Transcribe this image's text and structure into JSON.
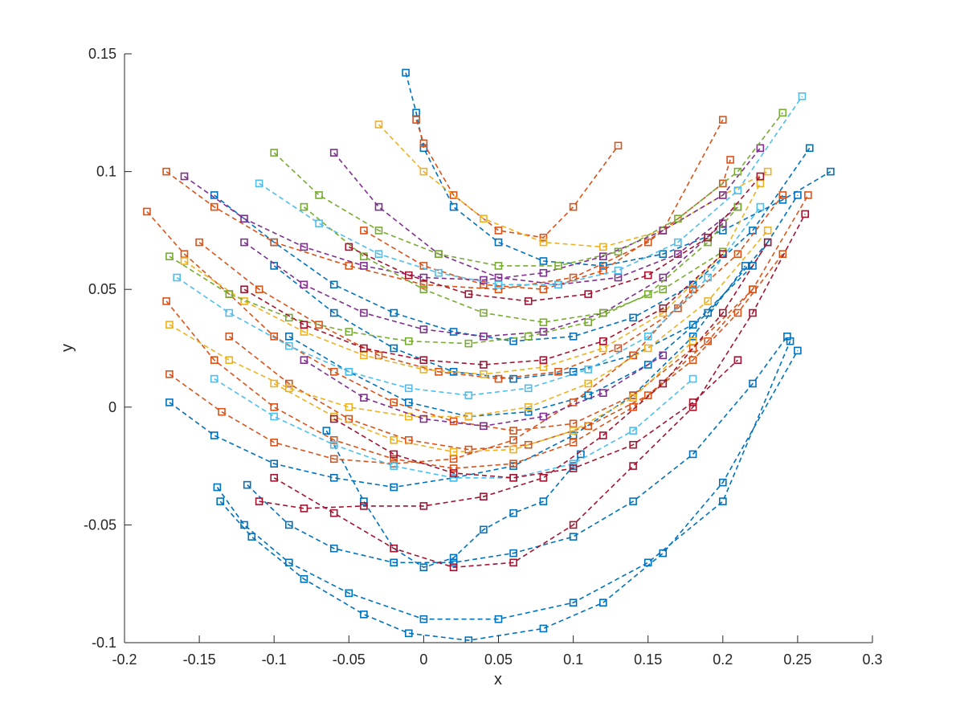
{
  "chart_data": {
    "type": "line",
    "title": "",
    "xlabel": "x",
    "ylabel": "y",
    "xlim": [
      -0.2,
      0.3
    ],
    "ylim": [
      -0.1,
      0.15
    ],
    "xticks": [
      -0.2,
      -0.15,
      -0.1,
      -0.05,
      0,
      0.05,
      0.1,
      0.15,
      0.2,
      0.25,
      0.3
    ],
    "xtick_labels": [
      "-0.2",
      "-0.15",
      "-0.1",
      "-0.05",
      "0",
      "0.05",
      "0.1",
      "0.15",
      "0.2",
      "0.25",
      "0.3"
    ],
    "yticks": [
      -0.1,
      -0.05,
      0,
      0.05,
      0.1,
      0.15
    ],
    "ytick_labels": [
      "-0.1",
      "-0.05",
      "0",
      "0.05",
      "0.1",
      "0.15"
    ],
    "grid": false,
    "legend": "none",
    "line_style": "dashed",
    "marker": "square",
    "colors": [
      "#0072BD",
      "#D95319",
      "#EDB120",
      "#7E2F8E",
      "#77AC30",
      "#4DBEEE",
      "#A2142F"
    ],
    "series": [
      {
        "color": "#0072BD",
        "x": [
          -0.138,
          -0.12,
          -0.09,
          -0.05,
          0.0,
          0.05,
          0.1,
          0.15,
          0.2,
          0.245
        ],
        "y": [
          -0.034,
          -0.05,
          -0.066,
          -0.079,
          -0.09,
          -0.09,
          -0.083,
          -0.066,
          -0.04,
          0.028
        ]
      },
      {
        "color": "#0072BD",
        "x": [
          -0.136,
          -0.115,
          -0.08,
          -0.04,
          -0.01,
          0.03,
          0.08,
          0.12,
          0.16,
          0.2,
          0.25
        ],
        "y": [
          -0.04,
          -0.055,
          -0.073,
          -0.088,
          -0.096,
          -0.099,
          -0.094,
          -0.083,
          -0.062,
          -0.032,
          0.024
        ]
      },
      {
        "color": "#0072BD",
        "x": [
          -0.118,
          -0.09,
          -0.06,
          -0.02,
          0.02,
          0.06,
          0.1,
          0.14,
          0.18,
          0.22,
          0.243
        ],
        "y": [
          -0.033,
          -0.05,
          -0.06,
          -0.066,
          -0.066,
          -0.062,
          -0.055,
          -0.04,
          -0.02,
          0.01,
          0.03
        ]
      },
      {
        "color": "#0072BD",
        "x": [
          -0.17,
          -0.14,
          -0.1,
          -0.06,
          -0.02,
          0.02,
          0.06,
          0.1,
          0.14,
          0.18,
          0.215
        ],
        "y": [
          0.002,
          -0.012,
          -0.024,
          -0.03,
          -0.034,
          -0.03,
          -0.025,
          -0.012,
          0.005,
          0.03,
          0.06
        ]
      },
      {
        "color": "#0072BD",
        "x": [
          -0.065,
          -0.04,
          -0.02,
          0.0,
          0.02,
          0.04,
          0.06,
          0.08,
          0.1,
          0.105
        ],
        "y": [
          -0.01,
          -0.04,
          -0.06,
          -0.068,
          -0.064,
          -0.052,
          -0.045,
          -0.04,
          -0.025,
          -0.02
        ]
      },
      {
        "color": "#0072BD",
        "x": [
          -0.012,
          -0.005,
          0.0,
          0.02,
          0.05,
          0.08,
          0.12,
          0.16,
          0.2,
          0.24,
          0.272
        ],
        "y": [
          0.142,
          0.125,
          0.11,
          0.085,
          0.07,
          0.062,
          0.06,
          0.065,
          0.075,
          0.088,
          0.1
        ]
      },
      {
        "color": "#0072BD",
        "x": [
          -0.14,
          -0.1,
          -0.06,
          -0.02,
          0.02,
          0.06,
          0.1,
          0.14,
          0.18,
          0.22,
          0.258
        ],
        "y": [
          0.09,
          0.07,
          0.052,
          0.04,
          0.032,
          0.028,
          0.03,
          0.038,
          0.052,
          0.075,
          0.11
        ]
      },
      {
        "color": "#0072BD",
        "x": [
          -0.1,
          -0.06,
          -0.02,
          0.02,
          0.06,
          0.1,
          0.14,
          0.18,
          0.22,
          0.25
        ],
        "y": [
          0.06,
          0.04,
          0.025,
          0.015,
          0.012,
          0.015,
          0.022,
          0.035,
          0.06,
          0.09
        ]
      },
      {
        "color": "#0072BD",
        "x": [
          -0.09,
          -0.05,
          -0.01,
          0.03,
          0.07,
          0.11,
          0.15,
          0.19,
          0.23
        ],
        "y": [
          0.03,
          0.015,
          0.002,
          -0.004,
          -0.002,
          0.005,
          0.018,
          0.04,
          0.07
        ]
      },
      {
        "color": "#D95319",
        "x": [
          -0.185,
          -0.16,
          -0.13,
          -0.1,
          -0.06,
          -0.02,
          0.02,
          0.06,
          0.1,
          0.14,
          0.18,
          0.22,
          0.257
        ],
        "y": [
          0.083,
          0.065,
          0.048,
          0.03,
          0.015,
          0.002,
          -0.006,
          -0.01,
          -0.007,
          0.005,
          0.025,
          0.05,
          0.09
        ]
      },
      {
        "color": "#D95319",
        "x": [
          -0.172,
          -0.14,
          -0.1,
          -0.06,
          -0.02,
          0.02,
          0.06,
          0.1,
          0.14,
          0.18,
          0.21,
          0.24
        ],
        "y": [
          0.045,
          0.02,
          0.0,
          -0.014,
          -0.022,
          -0.026,
          -0.024,
          -0.015,
          0.0,
          0.02,
          0.04,
          0.065
        ]
      },
      {
        "color": "#D95319",
        "x": [
          -0.17,
          -0.135,
          -0.1,
          -0.06,
          -0.02,
          0.02,
          0.06,
          0.1,
          0.14,
          0.18
        ],
        "y": [
          0.014,
          -0.002,
          -0.015,
          -0.022,
          -0.024,
          -0.022,
          -0.014,
          0.002,
          0.022,
          0.05
        ]
      },
      {
        "color": "#D95319",
        "x": [
          -0.172,
          -0.14,
          -0.1,
          -0.05,
          0.0,
          0.05,
          0.1,
          0.15,
          0.2,
          0.205
        ],
        "y": [
          0.1,
          0.085,
          0.07,
          0.06,
          0.052,
          0.05,
          0.055,
          0.07,
          0.095,
          0.105
        ]
      },
      {
        "color": "#D95319",
        "x": [
          -0.005,
          0.0,
          0.02,
          0.05,
          0.08,
          0.1,
          0.13
        ],
        "y": [
          0.122,
          0.112,
          0.09,
          0.075,
          0.072,
          0.085,
          0.111
        ]
      },
      {
        "color": "#D95319",
        "x": [
          -0.15,
          -0.11,
          -0.07,
          -0.03,
          0.01,
          0.05,
          0.09,
          0.13,
          0.17,
          0.21,
          0.24
        ],
        "y": [
          0.07,
          0.05,
          0.035,
          0.022,
          0.015,
          0.012,
          0.015,
          0.025,
          0.042,
          0.065,
          0.09
        ]
      },
      {
        "color": "#D95319",
        "x": [
          -0.13,
          -0.09,
          -0.05,
          -0.01,
          0.03,
          0.07,
          0.11,
          0.15,
          0.19,
          0.22
        ],
        "y": [
          0.03,
          0.01,
          -0.005,
          -0.014,
          -0.018,
          -0.016,
          -0.008,
          0.005,
          0.028,
          0.05
        ]
      },
      {
        "color": "#D95319",
        "x": [
          -0.04,
          0.0,
          0.04,
          0.08,
          0.12,
          0.16,
          0.2
        ],
        "y": [
          0.075,
          0.06,
          0.052,
          0.05,
          0.058,
          0.075,
          0.122
        ]
      },
      {
        "color": "#EDB120",
        "x": [
          -0.17,
          -0.13,
          -0.09,
          -0.05,
          -0.01,
          0.03,
          0.07,
          0.11,
          0.15,
          0.19,
          0.23
        ],
        "y": [
          0.035,
          0.02,
          0.008,
          0.0,
          -0.004,
          -0.004,
          0.0,
          0.01,
          0.025,
          0.045,
          0.075
        ]
      },
      {
        "color": "#EDB120",
        "x": [
          -0.03,
          0.0,
          0.04,
          0.08,
          0.12,
          0.16,
          0.2,
          0.23
        ],
        "y": [
          0.12,
          0.1,
          0.08,
          0.07,
          0.068,
          0.075,
          0.09,
          0.1
        ]
      },
      {
        "color": "#EDB120",
        "x": [
          -0.16,
          -0.12,
          -0.08,
          -0.04,
          0.0,
          0.04,
          0.08,
          0.12,
          0.16,
          0.2,
          0.225
        ],
        "y": [
          0.062,
          0.045,
          0.032,
          0.022,
          0.016,
          0.014,
          0.017,
          0.025,
          0.04,
          0.065,
          0.095
        ]
      },
      {
        "color": "#EDB120",
        "x": [
          -0.1,
          -0.06,
          -0.02,
          0.02,
          0.06,
          0.1,
          0.14,
          0.18
        ],
        "y": [
          0.01,
          -0.004,
          -0.014,
          -0.019,
          -0.018,
          -0.01,
          0.004,
          0.028
        ]
      },
      {
        "color": "#7E2F8E",
        "x": [
          -0.16,
          -0.12,
          -0.08,
          -0.04,
          0.0,
          0.04,
          0.08,
          0.12,
          0.16,
          0.2,
          0.225
        ],
        "y": [
          0.098,
          0.08,
          0.068,
          0.06,
          0.055,
          0.054,
          0.057,
          0.064,
          0.075,
          0.09,
          0.11
        ]
      },
      {
        "color": "#7E2F8E",
        "x": [
          -0.06,
          -0.03,
          0.01,
          0.05,
          0.09,
          0.13,
          0.17,
          0.21
        ],
        "y": [
          0.108,
          0.085,
          0.065,
          0.055,
          0.052,
          0.055,
          0.065,
          0.085
        ]
      },
      {
        "color": "#7E2F8E",
        "x": [
          -0.12,
          -0.08,
          -0.04,
          0.0,
          0.04,
          0.08,
          0.12,
          0.16,
          0.2
        ],
        "y": [
          0.07,
          0.052,
          0.04,
          0.033,
          0.03,
          0.032,
          0.04,
          0.055,
          0.078
        ]
      },
      {
        "color": "#7E2F8E",
        "x": [
          -0.08,
          -0.04,
          0.0,
          0.04,
          0.08,
          0.12,
          0.16
        ],
        "y": [
          0.02,
          0.004,
          -0.005,
          -0.008,
          -0.004,
          0.006,
          0.022
        ]
      },
      {
        "color": "#77AC30",
        "x": [
          -0.1,
          -0.07,
          -0.03,
          0.01,
          0.05,
          0.09,
          0.13,
          0.17,
          0.21,
          0.24
        ],
        "y": [
          0.108,
          0.09,
          0.075,
          0.065,
          0.06,
          0.06,
          0.066,
          0.08,
          0.1,
          0.125
        ]
      },
      {
        "color": "#77AC30",
        "x": [
          -0.17,
          -0.13,
          -0.09,
          -0.05,
          -0.01,
          0.03,
          0.07,
          0.11,
          0.15,
          0.19,
          0.21
        ],
        "y": [
          0.064,
          0.048,
          0.038,
          0.032,
          0.028,
          0.027,
          0.03,
          0.036,
          0.048,
          0.07,
          0.085
        ]
      },
      {
        "color": "#77AC30",
        "x": [
          -0.08,
          -0.04,
          0.0,
          0.04,
          0.08,
          0.12,
          0.16,
          0.2
        ],
        "y": [
          0.085,
          0.064,
          0.05,
          0.04,
          0.036,
          0.04,
          0.05,
          0.066
        ]
      },
      {
        "color": "#4DBEEE",
        "x": [
          -0.165,
          -0.13,
          -0.09,
          -0.05,
          -0.01,
          0.03,
          0.07,
          0.11,
          0.15,
          0.19,
          0.225
        ],
        "y": [
          0.055,
          0.04,
          0.026,
          0.015,
          0.008,
          0.005,
          0.008,
          0.016,
          0.03,
          0.055,
          0.085
        ]
      },
      {
        "color": "#4DBEEE",
        "x": [
          -0.11,
          -0.07,
          -0.03,
          0.01,
          0.05,
          0.09,
          0.13,
          0.17,
          0.21,
          0.253
        ],
        "y": [
          0.095,
          0.078,
          0.065,
          0.057,
          0.052,
          0.052,
          0.058,
          0.07,
          0.092,
          0.132
        ]
      },
      {
        "color": "#4DBEEE",
        "x": [
          -0.14,
          -0.1,
          -0.06,
          -0.02,
          0.02,
          0.06,
          0.1,
          0.14,
          0.18
        ],
        "y": [
          0.012,
          -0.004,
          -0.016,
          -0.025,
          -0.03,
          -0.03,
          -0.024,
          -0.01,
          0.012
        ]
      },
      {
        "color": "#A2142F",
        "x": [
          -0.1,
          -0.06,
          -0.02,
          0.02,
          0.06,
          0.1,
          0.14,
          0.18,
          0.22,
          0.255
        ],
        "y": [
          -0.03,
          -0.045,
          -0.06,
          -0.068,
          -0.066,
          -0.05,
          -0.025,
          0.0,
          0.04,
          0.082
        ]
      },
      {
        "color": "#A2142F",
        "x": [
          -0.11,
          -0.08,
          -0.04,
          0.0,
          0.04,
          0.08,
          0.12,
          0.16,
          0.2,
          0.23
        ],
        "y": [
          -0.04,
          -0.043,
          -0.042,
          -0.042,
          -0.038,
          -0.03,
          -0.012,
          0.01,
          0.04,
          0.07
        ]
      },
      {
        "color": "#A2142F",
        "x": [
          -0.05,
          -0.01,
          0.03,
          0.07,
          0.11,
          0.15,
          0.19,
          0.225
        ],
        "y": [
          0.068,
          0.056,
          0.048,
          0.045,
          0.048,
          0.056,
          0.072,
          0.098
        ]
      },
      {
        "color": "#A2142F",
        "x": [
          -0.06,
          -0.02,
          0.02,
          0.06,
          0.1,
          0.14,
          0.18,
          0.21
        ],
        "y": [
          -0.005,
          -0.02,
          -0.028,
          -0.03,
          -0.026,
          -0.016,
          0.002,
          0.02
        ]
      },
      {
        "color": "#A2142F",
        "x": [
          -0.12,
          -0.08,
          -0.04,
          0.0,
          0.04,
          0.08,
          0.12,
          0.16,
          0.2
        ],
        "y": [
          0.05,
          0.035,
          0.025,
          0.02,
          0.018,
          0.02,
          0.028,
          0.042,
          0.065
        ]
      }
    ]
  }
}
